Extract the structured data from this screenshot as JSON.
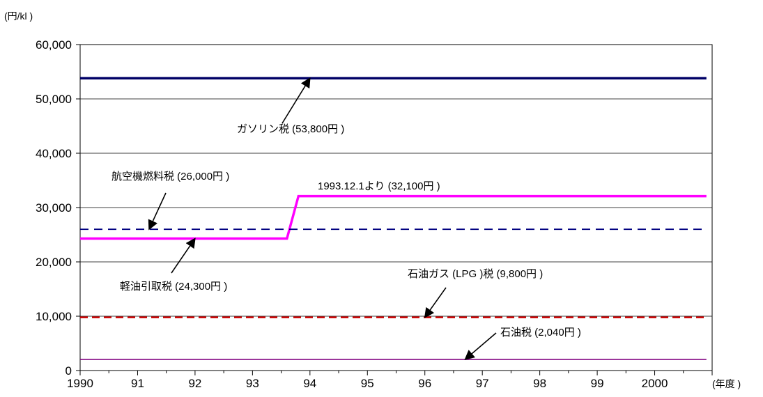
{
  "chart_data": {
    "type": "line",
    "y_unit_label": "(円/kl )",
    "x_unit_label": "(年度 )",
    "ylim": [
      0,
      60000
    ],
    "y_ticks": [
      0,
      10000,
      20000,
      30000,
      40000,
      50000,
      60000
    ],
    "y_tick_labels": [
      "0",
      "10,000",
      "20,000",
      "30,000",
      "40,000",
      "50,000",
      "60,000"
    ],
    "xlim": [
      1990,
      2001
    ],
    "x_ticks": [
      1990,
      1991,
      1992,
      1993,
      1994,
      1995,
      1996,
      1997,
      1998,
      1999,
      2000
    ],
    "x_tick_labels": [
      "1990",
      "91",
      "92",
      "93",
      "94",
      "95",
      "96",
      "97",
      "98",
      "99",
      "2000"
    ],
    "grid": "horizontal",
    "series": [
      {
        "key": "gasoline",
        "color": "#000066",
        "style": "solid-thick",
        "x": [
          1990,
          2000.9
        ],
        "y": [
          53800,
          53800
        ]
      },
      {
        "key": "light_oil",
        "color": "#ff00ff",
        "style": "solid-thick",
        "x": [
          1990,
          1993.6,
          1993.8,
          2000.9
        ],
        "y": [
          24300,
          24300,
          32100,
          32100
        ]
      },
      {
        "key": "jet_fuel",
        "color": "#000080",
        "style": "dashed",
        "x": [
          1990,
          2000.9
        ],
        "y": [
          26000,
          26000
        ]
      },
      {
        "key": "lpg",
        "color": "#cc0000",
        "style": "dashed-thick",
        "x": [
          1990,
          2000.9
        ],
        "y": [
          9800,
          9800
        ]
      },
      {
        "key": "petroleum",
        "color": "#800080",
        "style": "solid-thin",
        "x": [
          1990,
          2000.9
        ],
        "y": [
          2040,
          2040
        ]
      }
    ],
    "annotations": [
      {
        "key": "gasoline",
        "text": "ガソリン税 (53,800円 )",
        "tip": [
          1994,
          53800
        ]
      },
      {
        "key": "jet_fuel",
        "text": "航空機燃料税 (26,000円 )",
        "tip": [
          1991.2,
          26000
        ]
      },
      {
        "key": "change",
        "text": "1993.12.1より (32,100円 )",
        "tip": null
      },
      {
        "key": "light_oil",
        "text": "軽油引取税 (24,300円 )",
        "tip": [
          1992,
          24300
        ]
      },
      {
        "key": "lpg",
        "text": "石油ガス (LPG )税 (9,800円 )",
        "tip": [
          1996,
          9800
        ]
      },
      {
        "key": "petroleum",
        "text": "石油税 (2,040円 )",
        "tip": [
          1996.7,
          2040
        ]
      }
    ]
  }
}
